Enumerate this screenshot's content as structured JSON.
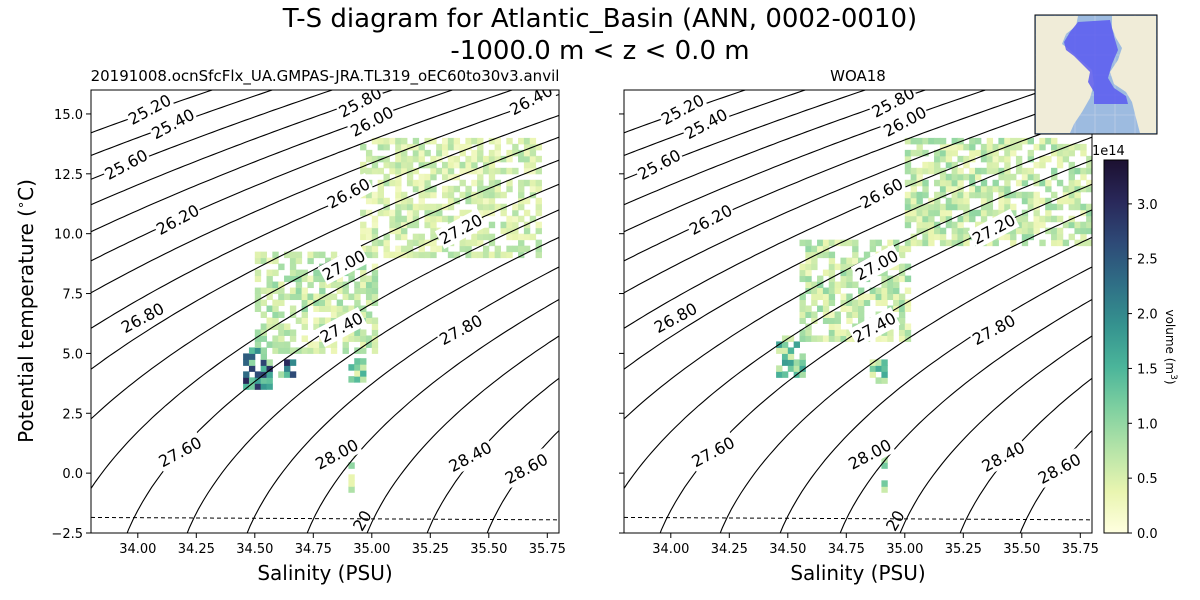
{
  "figure": {
    "title_line1": "T-S diagram for Atlantic_Basin (ANN, 0002-0010)",
    "title_line2": "-1000.0 m < z < 0.0 m"
  },
  "colorbar": {
    "label": "volume (m",
    "label_sup": "3",
    "label_end": ")",
    "exponent": "1e14",
    "range": [
      0,
      3.4
    ],
    "ticks": [
      "0.0",
      "0.5",
      "1.0",
      "1.5",
      "2.0",
      "2.5",
      "3.0"
    ],
    "colors": [
      "#ffffe0",
      "#e9f5b0",
      "#b6e4a8",
      "#7fd0a0",
      "#4bb59a",
      "#35938f",
      "#2f6f86",
      "#2e4a77",
      "#29285a",
      "#1c1030"
    ]
  },
  "inset_map": {
    "ocean_color": "#9dbbe0",
    "land_color": "#f0ecd8",
    "basin_color": "#5b5bf0"
  },
  "chart_data": [
    {
      "type": "heatmap",
      "title": "20191008.ocnSfcFlx_UA.GMPAS-JRA.TL319_oEC60to30v3.anvil",
      "xlabel": "Salinity (PSU)",
      "ylabel": "Potential temperature (∘C)",
      "ylabel_main": "Potential temperature (",
      "ylabel_deg": "∘",
      "ylabel_end": "C)",
      "xlim": [
        33.8,
        35.8
      ],
      "ylim": [
        -2.5,
        16
      ],
      "xticks": [
        "34.00",
        "34.25",
        "34.50",
        "34.75",
        "35.00",
        "35.25",
        "35.50",
        "35.75"
      ],
      "yticks": [
        "−2.5",
        "0.0",
        "2.5",
        "5.0",
        "7.5",
        "10.0",
        "12.5",
        "15.0"
      ],
      "density_contours": [
        {
          "label": "25.20",
          "x": 34.05,
          "y": 15.2
        },
        {
          "label": "25.40",
          "x": 34.15,
          "y": 14.6
        },
        {
          "label": "25.60",
          "x": 33.95,
          "y": 12.9
        },
        {
          "label": "25.80",
          "x": 34.95,
          "y": 15.5
        },
        {
          "label": "26.00",
          "x": 35.0,
          "y": 14.7
        },
        {
          "label": "26.20",
          "x": 34.17,
          "y": 10.6
        },
        {
          "label": "26.40",
          "x": 35.68,
          "y": 15.6
        },
        {
          "label": "26.60",
          "x": 34.9,
          "y": 11.7
        },
        {
          "label": "26.80",
          "x": 34.02,
          "y": 6.5
        },
        {
          "label": "27.00",
          "x": 34.88,
          "y": 8.7
        },
        {
          "label": "27.20",
          "x": 35.38,
          "y": 10.2
        },
        {
          "label": "27.40",
          "x": 34.87,
          "y": 6.1
        },
        {
          "label": "27.60",
          "x": 34.18,
          "y": 0.9
        },
        {
          "label": "27.80",
          "x": 35.38,
          "y": 6.0
        },
        {
          "label": "28.00",
          "x": 34.85,
          "y": 0.8
        },
        {
          "label": "28.40",
          "x": 35.42,
          "y": 0.7
        },
        {
          "label": "28.60",
          "x": 35.66,
          "y": 0.2
        }
      ],
      "freezing_line": {
        "label": "20",
        "y": [
          -1.85,
          -1.95
        ]
      },
      "clusters": [
        {
          "s": [
            34.45,
            34.55
          ],
          "t": [
            3.5,
            5.0
          ],
          "level": 0.9
        },
        {
          "s": [
            34.6,
            34.65
          ],
          "t": [
            4.0,
            4.6
          ],
          "level": 1.0
        },
        {
          "s": [
            34.9,
            34.95
          ],
          "t": [
            3.8,
            4.6
          ],
          "level": 0.45
        },
        {
          "s": [
            34.9,
            34.91
          ],
          "t": [
            -0.8,
            1.2
          ],
          "level": 0.35
        },
        {
          "s": [
            34.5,
            35.0
          ],
          "t": [
            5.0,
            9.0
          ],
          "level": 0.3
        },
        {
          "s": [
            34.95,
            35.7
          ],
          "t": [
            9.0,
            13.8
          ],
          "level": 0.25
        }
      ]
    },
    {
      "type": "heatmap",
      "title": "WOA18",
      "xlabel": "Salinity (PSU)",
      "xlim": [
        33.8,
        35.8
      ],
      "ylim": [
        -2.5,
        16
      ],
      "xticks": [
        "34.00",
        "34.25",
        "34.50",
        "34.75",
        "35.00",
        "35.25",
        "35.50",
        "35.75"
      ],
      "density_contours": [
        {
          "label": "25.20",
          "x": 34.05,
          "y": 15.2
        },
        {
          "label": "25.40",
          "x": 34.15,
          "y": 14.6
        },
        {
          "label": "25.60",
          "x": 33.95,
          "y": 12.9
        },
        {
          "label": "25.80",
          "x": 34.95,
          "y": 15.5
        },
        {
          "label": "26.00",
          "x": 35.0,
          "y": 14.7
        },
        {
          "label": "26.20",
          "x": 34.17,
          "y": 10.6
        },
        {
          "label": "26.60",
          "x": 34.9,
          "y": 11.7
        },
        {
          "label": "26.80",
          "x": 34.02,
          "y": 6.5
        },
        {
          "label": "27.00",
          "x": 34.88,
          "y": 8.7
        },
        {
          "label": "27.20",
          "x": 35.38,
          "y": 10.2
        },
        {
          "label": "27.40",
          "x": 34.87,
          "y": 6.1
        },
        {
          "label": "27.60",
          "x": 34.18,
          "y": 0.9
        },
        {
          "label": "27.80",
          "x": 35.38,
          "y": 6.0
        },
        {
          "label": "28.00",
          "x": 34.85,
          "y": 0.8
        },
        {
          "label": "28.40",
          "x": 35.42,
          "y": 0.7
        },
        {
          "label": "28.60",
          "x": 35.66,
          "y": 0.2
        }
      ],
      "freezing_line": {
        "label": "20",
        "y": [
          -1.85,
          -1.95
        ]
      },
      "clusters": [
        {
          "s": [
            34.45,
            34.55
          ],
          "t": [
            4.0,
            5.5
          ],
          "level": 0.55
        },
        {
          "s": [
            34.85,
            34.9
          ],
          "t": [
            3.5,
            4.5
          ],
          "level": 0.5
        },
        {
          "s": [
            34.9,
            34.91
          ],
          "t": [
            -0.8,
            0.8
          ],
          "level": 0.4
        },
        {
          "s": [
            34.55,
            35.0
          ],
          "t": [
            5.5,
            9.5
          ],
          "level": 0.3
        },
        {
          "s": [
            35.0,
            35.8
          ],
          "t": [
            9.5,
            13.8
          ],
          "level": 0.3
        }
      ]
    }
  ]
}
